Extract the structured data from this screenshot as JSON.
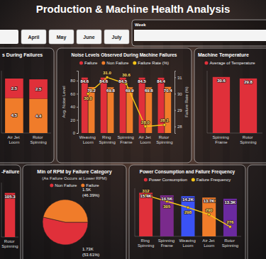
{
  "page": {
    "title": "Production & Machine Health Analysis",
    "months": [
      "April",
      "May",
      "June",
      "July"
    ],
    "week": "Week"
  },
  "chart_data": [
    {
      "type": "bar",
      "title": "s During Failures",
      "stacked": true,
      "data_labels": true,
      "tick_labels": "x",
      "categories": [
        "Air Jet Loom",
        "Rotor Spinning"
      ],
      "series": [
        {
          "color": "#f07c2a",
          "values": [
            4.5,
            4.4
          ]
        },
        {
          "color": "#e0303a",
          "values": [
            2.5,
            2.5
          ]
        }
      ],
      "ylim": [
        0,
        8
      ]
    },
    {
      "type": "bar",
      "title": "Noise Levels Observed During Machine Failures",
      "legend": "top",
      "data_labels": true,
      "categories": [
        "Weaving Loom",
        "Ring Spinning",
        "Spinning Frame",
        "Air Jet Loom",
        "Rotor Spinning"
      ],
      "series": [
        {
          "name": "Failure",
          "color": "#e0303a",
          "values": [
            84.6,
            84.6,
            84.5,
            84.5,
            84.4
          ]
        },
        {
          "name": "Non Failure",
          "color": "#f07c2a",
          "values": [
            70.2,
            69.8,
            69.9,
            69.8,
            70.4
          ]
        },
        {
          "name": "Failure Rate (%)",
          "type": "line",
          "axis": "y2",
          "color": "#f5c518",
          "marker": "circle",
          "values": [
            30.0,
            31.0,
            30.6,
            28.0,
            28.1
          ],
          "value_labels": [
            "30.0",
            "31.0",
            "30.6",
            "28.0",
            "28.1"
          ]
        }
      ],
      "ylabel": "Avg. Noise Level",
      "y2label": "Failure Rate (%)",
      "ylim": [
        0,
        95
      ],
      "yticks": [
        0,
        20,
        40,
        60,
        80
      ],
      "y2lim": [
        27.6,
        31.4
      ],
      "y2ticks": [
        28,
        29,
        30,
        31
      ]
    },
    {
      "type": "bar",
      "title": "Machine Temperature",
      "legend": "top",
      "data_labels": true,
      "tick_labels": "x",
      "categories": [
        "Spinning Frame",
        "Rotor Spinning"
      ],
      "series": [
        {
          "name": "Average of Temperature",
          "color": "#e0303a",
          "values": [
            30.6,
            29.8
          ]
        }
      ],
      "ylim": [
        0,
        34
      ]
    },
    {
      "type": "bar",
      "title": "-Failure",
      "data_labels": true,
      "tick_labels": "x",
      "categories": [
        "Rotor Spinning"
      ],
      "values": [
        105.3
      ],
      "color": "#e0303a",
      "ylim": [
        0,
        130
      ]
    },
    {
      "type": "pie",
      "title": "Min of RPM by Failure Category",
      "subtitle": "(As Failure Occurs at Lower RPM)",
      "legend": "top",
      "data_labels": true,
      "categories": [
        "Non Failure",
        "Failure"
      ],
      "values": [
        1729,
        1496
      ],
      "value_labels": [
        "1.73K (53.61%)",
        "1.5K (46.39%)"
      ],
      "colors": [
        "#e0303a",
        "#f07c2a"
      ]
    },
    {
      "type": "bar",
      "title": "Power Consumption and Failure Frequency",
      "legend": "top",
      "data_labels": true,
      "tick_labels": "x",
      "categories": [
        "Ring Spinning",
        "Spinning Frame",
        "Weaving Loom",
        "Air Jet Loom",
        "Rotor Spinning"
      ],
      "series": [
        {
          "name": "Power Consumption",
          "color": "#e0303a",
          "colors": [
            "#e0303a",
            "#7a2a8c",
            "#3a52f5",
            "#f07c2a",
            "#6b2aa0"
          ],
          "values": [
            15400,
            14500,
            14200,
            13700,
            13300
          ],
          "value_labels": [
            "15.4K",
            "14.5K",
            "14.2K",
            "13.7K",
            "13.3K"
          ]
        },
        {
          "name": "Failure Frequency",
          "type": "line",
          "axis": "y2",
          "color": "#f5c518",
          "marker": "circle",
          "values": [
            312,
            305,
            298,
            290,
            276
          ]
        }
      ],
      "ylim": [
        0,
        17000
      ],
      "y2lim": [
        265,
        320
      ]
    }
  ]
}
